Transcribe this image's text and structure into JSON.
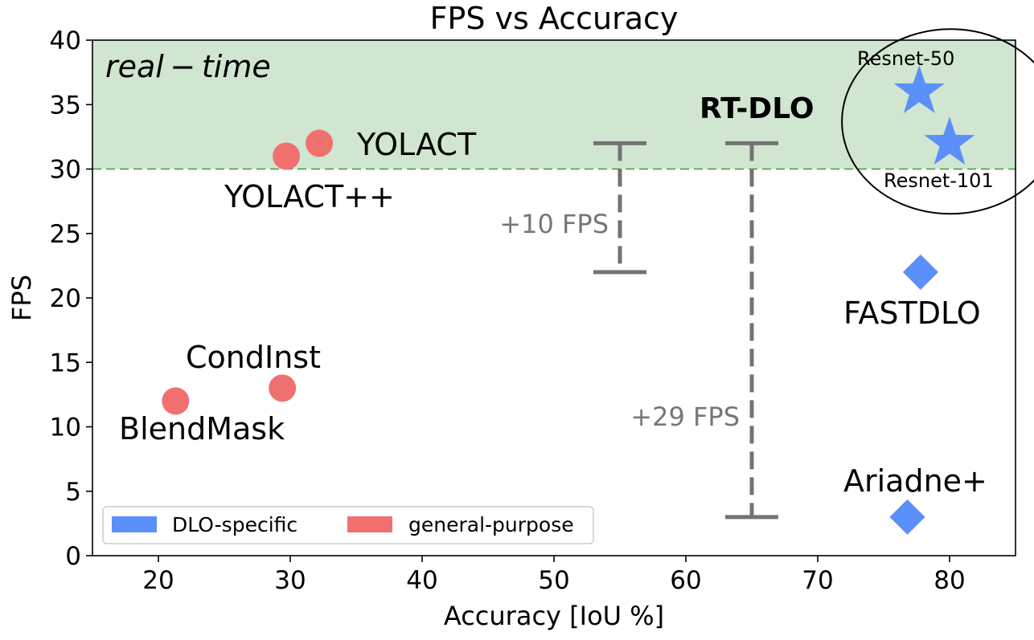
{
  "chart_data": {
    "type": "scatter",
    "title": "FPS vs Accuracy",
    "xlabel": "Accuracy [IoU %]",
    "ylabel": "FPS",
    "xlim": [
      15,
      85
    ],
    "ylim": [
      0,
      40
    ],
    "xticks": [
      20,
      30,
      40,
      50,
      60,
      70,
      80
    ],
    "yticks": [
      0,
      5,
      10,
      15,
      20,
      25,
      30,
      35,
      40
    ],
    "grid": false,
    "legend_position": "bottom-left",
    "realtime_threshold": 30,
    "realtime_label": "real − time",
    "colors": {
      "dlo_specific": "#5b8ff9",
      "general_purpose": "#f07070",
      "realtime_region": "#d0e6d0",
      "threshold_line": "#3f9a3f",
      "gain_bar": "#737373"
    },
    "series": [
      {
        "name": "DLO-specific",
        "color": "#5b8ff9",
        "points": [
          {
            "label": "Resnet-50",
            "x": 77.7,
            "y": 36,
            "marker": "star"
          },
          {
            "label": "Resnet-101",
            "x": 80.0,
            "y": 32,
            "marker": "star"
          },
          {
            "label": "FASTDLO",
            "x": 77.8,
            "y": 22,
            "marker": "diamond"
          },
          {
            "label": "Ariadne+",
            "x": 76.8,
            "y": 3,
            "marker": "diamond"
          }
        ]
      },
      {
        "name": "general-purpose",
        "color": "#f07070",
        "points": [
          {
            "label": "YOLACT",
            "x": 32.2,
            "y": 32,
            "marker": "circle"
          },
          {
            "label": "YOLACT++",
            "x": 29.7,
            "y": 31,
            "marker": "circle"
          },
          {
            "label": "CondInst",
            "x": 29.4,
            "y": 13,
            "marker": "circle"
          },
          {
            "label": "BlendMask",
            "x": 21.3,
            "y": 12,
            "marker": "circle"
          }
        ]
      }
    ],
    "annotations": [
      {
        "text": "YOLACT"
      },
      {
        "text": "YOLACT++"
      },
      {
        "text": "CondInst"
      },
      {
        "text": "BlendMask"
      },
      {
        "text": "FASTDLO"
      },
      {
        "text": "Ariadne+"
      },
      {
        "text": "Resnet-50"
      },
      {
        "text": "Resnet-101"
      },
      {
        "text": "RT-DLO"
      },
      {
        "text": "+10 FPS"
      },
      {
        "text": "+29 FPS"
      }
    ],
    "gain_bars": [
      {
        "x": 55,
        "y_low": 22,
        "y_high": 32,
        "label": "+10 FPS"
      },
      {
        "x": 65,
        "y_low": 3,
        "y_high": 32,
        "label": "+29 FPS"
      }
    ],
    "highlight_group": {
      "label": "RT-DLO",
      "members": [
        "Resnet-50",
        "Resnet-101"
      ]
    }
  }
}
